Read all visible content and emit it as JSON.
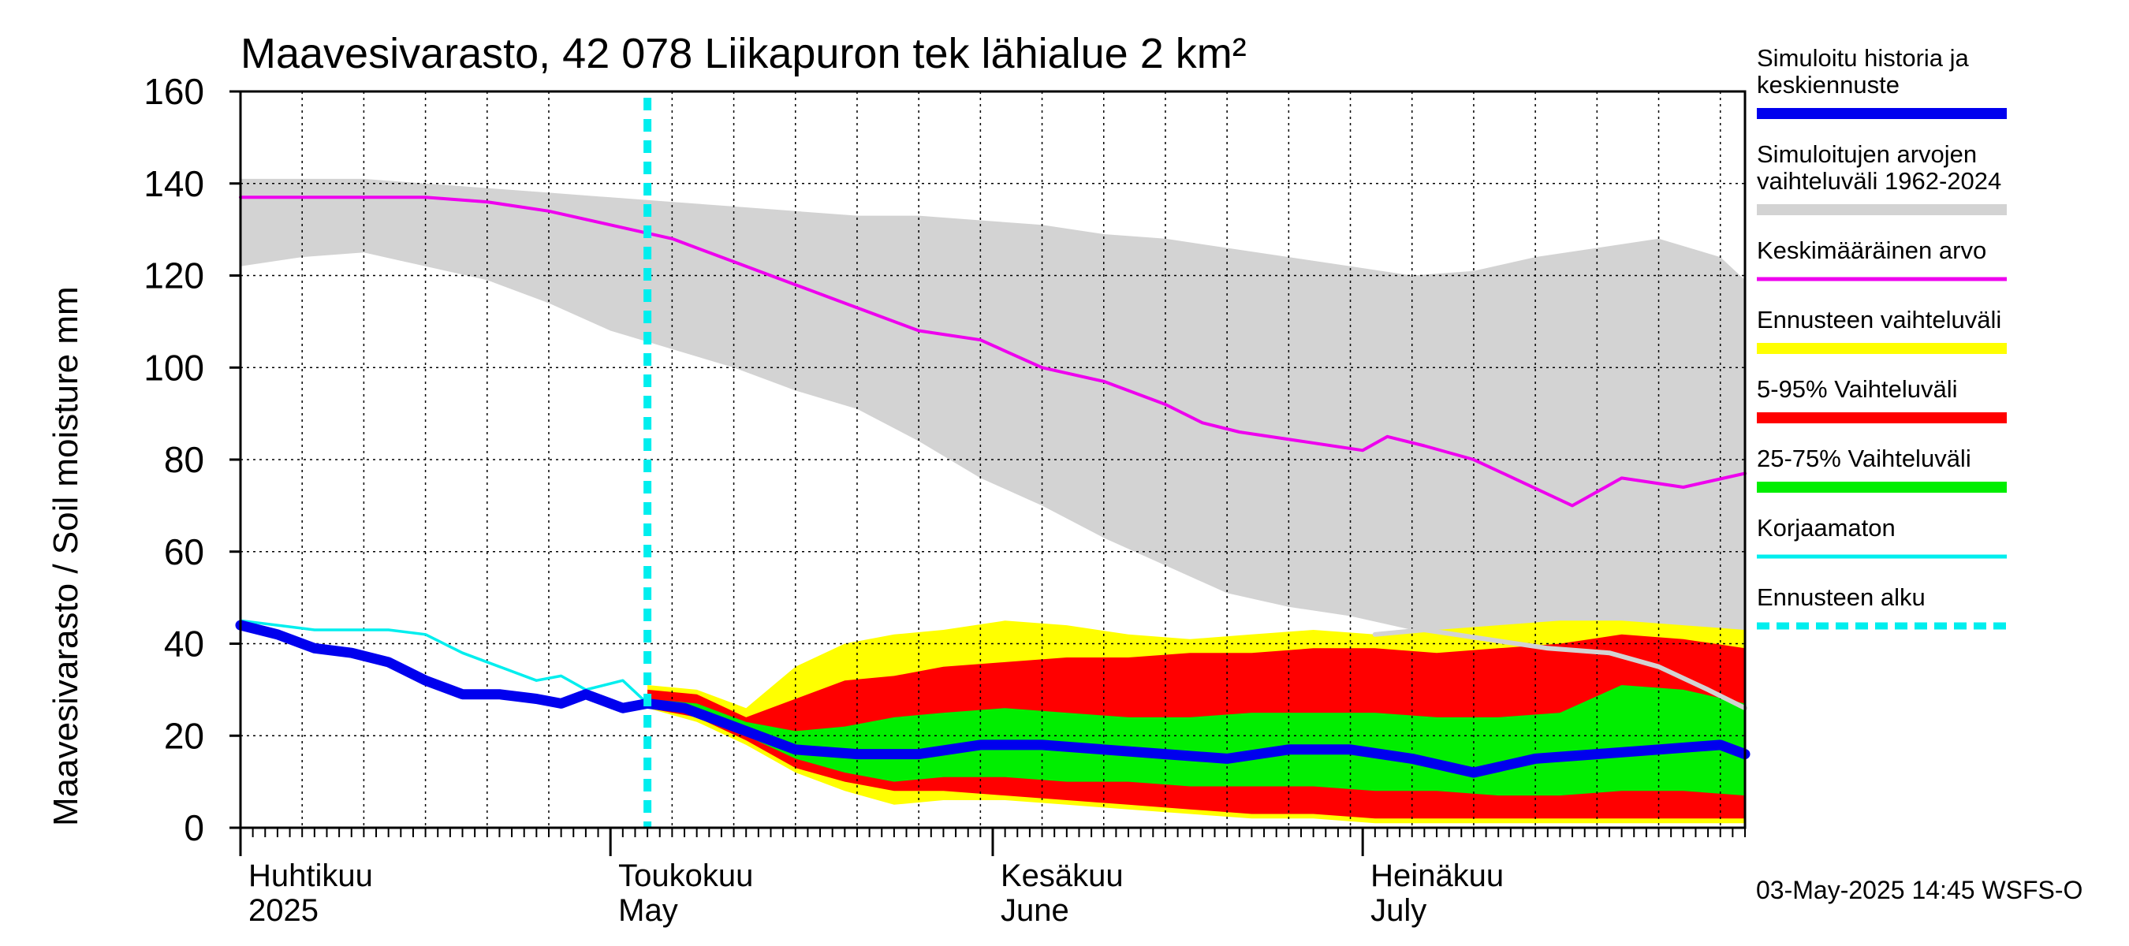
{
  "title": "Maavesivarasto, 42 078 Liikapuron tek lähialue 2 km²",
  "ylabel": "Maavesivarasto / Soil moisture   mm",
  "timestamp": "03-May-2025 14:45 WSFS-O",
  "months": [
    {
      "line1": "Huhtikuu",
      "line2": "2025",
      "day": 0
    },
    {
      "line1": "Toukokuu",
      "line2": "May",
      "day": 30
    },
    {
      "line1": "Kesäkuu",
      "line2": "June",
      "day": 61
    },
    {
      "line1": "Heinäkuu",
      "line2": "July",
      "day": 91
    }
  ],
  "legend": [
    {
      "text": [
        "Simuloitu historia ja",
        "keskiennuste"
      ],
      "color": "#0000ee",
      "style": "thick"
    },
    {
      "text": [
        "Simuloitujen arvojen",
        "vaihteluväli 1962-2024"
      ],
      "color": "#d3d3d3",
      "style": "thick"
    },
    {
      "text": [
        "Keskimääräinen arvo"
      ],
      "color": "#ee00ee",
      "style": "thin"
    },
    {
      "text": [
        "Ennusteen vaihteluväli"
      ],
      "color": "#ffff00",
      "style": "thick"
    },
    {
      "text": [
        "5-95% Vaihteluväli"
      ],
      "color": "#ff0000",
      "style": "thick"
    },
    {
      "text": [
        "25-75% Vaihteluväli"
      ],
      "color": "#00ee00",
      "style": "thick"
    },
    {
      "text": [
        "Korjaamaton"
      ],
      "color": "#00eeee",
      "style": "thin"
    },
    {
      "text": [
        "Ennusteen alku"
      ],
      "color": "#00eeee",
      "style": "dashed"
    }
  ],
  "chart_data": {
    "type": "area",
    "title": "Maavesivarasto, 42 078 Liikapuron tek lähialue 2 km²",
    "ylabel": "Maavesivarasto / Soil moisture   mm",
    "xlabel": "",
    "x_range": [
      "2025-03-31",
      "2025-07-31"
    ],
    "ylim": [
      0,
      160
    ],
    "yticks": [
      0,
      20,
      40,
      60,
      80,
      100,
      120,
      140,
      160
    ],
    "grid": true,
    "legend_position": "right",
    "forecast_start": "2025-05-03",
    "series": [
      {
        "name": "Simuloitujen arvojen vaihteluväli 1962-2024",
        "kind": "band",
        "color": "#d3d3d3",
        "dates": [
          "2025-03-31",
          "2025-04-05",
          "2025-04-10",
          "2025-04-15",
          "2025-04-20",
          "2025-04-25",
          "2025-04-30",
          "2025-05-05",
          "2025-05-10",
          "2025-05-15",
          "2025-05-20",
          "2025-05-25",
          "2025-05-30",
          "2025-06-04",
          "2025-06-09",
          "2025-06-14",
          "2025-06-19",
          "2025-06-24",
          "2025-06-29",
          "2025-07-04",
          "2025-07-09",
          "2025-07-14",
          "2025-07-19",
          "2025-07-24",
          "2025-07-29",
          "2025-07-31"
        ],
        "low": [
          122,
          124,
          125,
          122,
          119,
          114,
          108,
          104,
          100,
          95,
          91,
          84,
          76,
          70,
          63,
          57,
          51,
          48,
          46,
          43,
          41,
          40,
          40,
          40,
          41,
          42
        ],
        "high": [
          141,
          141,
          141,
          140,
          139,
          138,
          137,
          136,
          135,
          134,
          133,
          133,
          132,
          131,
          129,
          128,
          126,
          124,
          122,
          120,
          121,
          124,
          126,
          128,
          124,
          119
        ]
      },
      {
        "name": "Ennusteen vaihteluväli",
        "kind": "band",
        "color": "#ffff00",
        "dates": [
          "2025-05-03",
          "2025-05-07",
          "2025-05-11",
          "2025-05-15",
          "2025-05-19",
          "2025-05-23",
          "2025-05-27",
          "2025-06-01",
          "2025-06-06",
          "2025-06-11",
          "2025-06-16",
          "2025-06-21",
          "2025-06-26",
          "2025-07-01",
          "2025-07-06",
          "2025-07-11",
          "2025-07-16",
          "2025-07-21",
          "2025-07-26",
          "2025-07-31"
        ],
        "low": [
          26,
          23,
          18,
          12,
          8,
          5,
          6,
          6,
          5,
          4,
          3,
          2,
          2,
          1,
          1,
          1,
          1,
          1,
          1,
          1
        ],
        "high": [
          31,
          30,
          26,
          35,
          40,
          42,
          43,
          45,
          44,
          42,
          41,
          42,
          43,
          42,
          43,
          44,
          45,
          45,
          44,
          43
        ]
      },
      {
        "name": "5-95% Vaihteluväli",
        "kind": "band",
        "color": "#ff0000",
        "dates": [
          "2025-05-03",
          "2025-05-07",
          "2025-05-11",
          "2025-05-15",
          "2025-05-19",
          "2025-05-23",
          "2025-05-27",
          "2025-06-01",
          "2025-06-06",
          "2025-06-11",
          "2025-06-16",
          "2025-06-21",
          "2025-06-26",
          "2025-07-01",
          "2025-07-06",
          "2025-07-11",
          "2025-07-16",
          "2025-07-21",
          "2025-07-26",
          "2025-07-31"
        ],
        "low": [
          26,
          24,
          19,
          13,
          10,
          8,
          8,
          7,
          6,
          5,
          4,
          3,
          3,
          2,
          2,
          2,
          2,
          2,
          2,
          2
        ],
        "high": [
          30,
          29,
          24,
          28,
          32,
          33,
          35,
          36,
          37,
          37,
          38,
          38,
          39,
          39,
          38,
          39,
          40,
          42,
          41,
          39
        ]
      },
      {
        "name": "25-75% Vaihteluväli",
        "kind": "band",
        "color": "#00ee00",
        "dates": [
          "2025-05-03",
          "2025-05-07",
          "2025-05-11",
          "2025-05-15",
          "2025-05-19",
          "2025-05-23",
          "2025-05-27",
          "2025-06-01",
          "2025-06-06",
          "2025-06-11",
          "2025-06-16",
          "2025-06-21",
          "2025-06-26",
          "2025-07-01",
          "2025-07-06",
          "2025-07-11",
          "2025-07-16",
          "2025-07-21",
          "2025-07-26",
          "2025-07-31"
        ],
        "low": [
          26,
          25,
          20,
          15,
          12,
          10,
          11,
          11,
          10,
          10,
          9,
          9,
          9,
          8,
          8,
          7,
          7,
          8,
          8,
          7
        ],
        "high": [
          28,
          27,
          23,
          21,
          22,
          24,
          25,
          26,
          25,
          24,
          24,
          25,
          25,
          25,
          24,
          24,
          25,
          31,
          30,
          27
        ]
      },
      {
        "name": "Keskimääräinen arvo",
        "kind": "line",
        "color": "#ee00ee",
        "dates": [
          "2025-03-31",
          "2025-04-05",
          "2025-04-10",
          "2025-04-15",
          "2025-04-20",
          "2025-04-25",
          "2025-04-30",
          "2025-05-05",
          "2025-05-10",
          "2025-05-15",
          "2025-05-20",
          "2025-05-25",
          "2025-05-30",
          "2025-06-04",
          "2025-06-09",
          "2025-06-14",
          "2025-06-17",
          "2025-06-20",
          "2025-06-25",
          "2025-06-30",
          "2025-07-02",
          "2025-07-05",
          "2025-07-09",
          "2025-07-13",
          "2025-07-17",
          "2025-07-21",
          "2025-07-26",
          "2025-07-31"
        ],
        "values": [
          137,
          137,
          137,
          137,
          136,
          134,
          131,
          128,
          123,
          118,
          113,
          108,
          106,
          100,
          97,
          92,
          88,
          86,
          84,
          82,
          85,
          83,
          80,
          75,
          70,
          76,
          74,
          77
        ]
      },
      {
        "name": "Simuloitujen arvojen vaihteluväli 1962-2024 (alaraja)",
        "kind": "line",
        "color": "#d3d3d3",
        "dates": [
          "2025-07-01",
          "2025-07-05",
          "2025-07-10",
          "2025-07-15",
          "2025-07-20",
          "2025-07-24",
          "2025-07-28",
          "2025-07-31"
        ],
        "values": [
          42,
          43,
          41,
          39,
          38,
          35,
          30,
          26
        ]
      },
      {
        "name": "Korjaamaton",
        "kind": "line",
        "color": "#00eeee",
        "dates": [
          "2025-03-31",
          "2025-04-03",
          "2025-04-06",
          "2025-04-09",
          "2025-04-12",
          "2025-04-15",
          "2025-04-18",
          "2025-04-21",
          "2025-04-24",
          "2025-04-26",
          "2025-04-28",
          "2025-05-01",
          "2025-05-03"
        ],
        "values": [
          45,
          44,
          43,
          43,
          43,
          42,
          38,
          35,
          32,
          33,
          30,
          32,
          27
        ]
      },
      {
        "name": "Simuloitu historia ja keskiennuste",
        "kind": "line",
        "color": "#0000ee",
        "dates": [
          "2025-03-31",
          "2025-04-03",
          "2025-04-06",
          "2025-04-09",
          "2025-04-12",
          "2025-04-15",
          "2025-04-18",
          "2025-04-21",
          "2025-04-24",
          "2025-04-26",
          "2025-04-28",
          "2025-04-30",
          "2025-05-01",
          "2025-05-03",
          "2025-05-06",
          "2025-05-09",
          "2025-05-12",
          "2025-05-15",
          "2025-05-20",
          "2025-05-25",
          "2025-05-30",
          "2025-06-04",
          "2025-06-09",
          "2025-06-14",
          "2025-06-19",
          "2025-06-24",
          "2025-06-29",
          "2025-07-04",
          "2025-07-09",
          "2025-07-14",
          "2025-07-19",
          "2025-07-24",
          "2025-07-29",
          "2025-07-31"
        ],
        "values": [
          44,
          42,
          39,
          38,
          36,
          32,
          29,
          29,
          28,
          27,
          29,
          27,
          26,
          27,
          26,
          23,
          20,
          17,
          16,
          16,
          18,
          18,
          17,
          16,
          15,
          17,
          17,
          15,
          12,
          15,
          16,
          17,
          18,
          16
        ]
      }
    ]
  }
}
